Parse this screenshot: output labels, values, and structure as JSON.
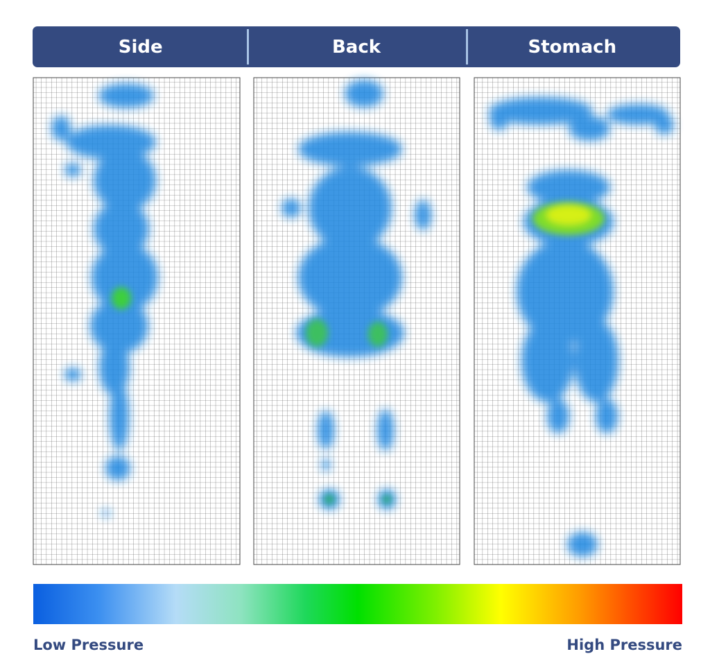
{
  "header": {
    "tabs": [
      "Side",
      "Back",
      "Stomach"
    ]
  },
  "legend": {
    "low": "Low Pressure",
    "high": "High Pressure"
  }
}
